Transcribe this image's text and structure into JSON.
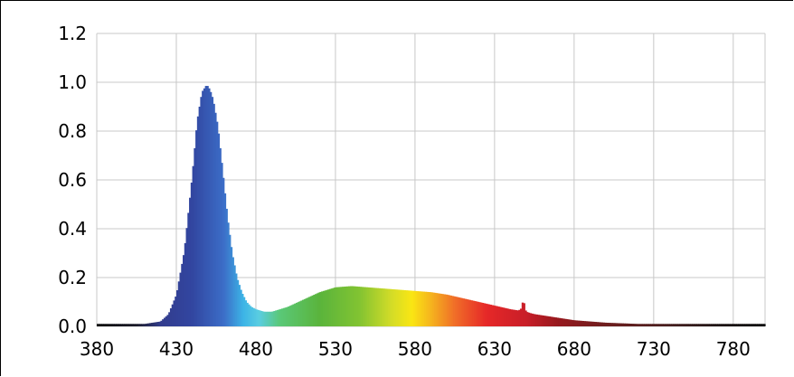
{
  "chart_data": {
    "type": "area",
    "title": "",
    "xlabel": "",
    "ylabel": "",
    "xlim": [
      380,
      800
    ],
    "ylim": [
      0.0,
      1.2
    ],
    "grid": true,
    "legend": "none",
    "x_ticks": [
      "380",
      "430",
      "480",
      "530",
      "580",
      "630",
      "680",
      "730",
      "780"
    ],
    "y_ticks": [
      "0.0",
      "0.2",
      "0.4",
      "0.6",
      "0.8",
      "1.0",
      "1.2"
    ],
    "series": [
      {
        "x": [
          380,
          400,
          410,
          420,
          425,
          430,
          435,
          440,
          443,
          446,
          449,
          451,
          453,
          456,
          459,
          462,
          465,
          468,
          471,
          474,
          477,
          480,
          485,
          490,
          495,
          500,
          510,
          520,
          530,
          540,
          550,
          560,
          570,
          580,
          590,
          600,
          610,
          620,
          630,
          640,
          645,
          647,
          648,
          649,
          650,
          652,
          655,
          660,
          670,
          680,
          690,
          700,
          720,
          740,
          760,
          780,
          800
        ],
        "y": [
          0.01,
          0.01,
          0.01,
          0.02,
          0.05,
          0.13,
          0.31,
          0.62,
          0.84,
          0.96,
          0.99,
          0.97,
          0.93,
          0.82,
          0.64,
          0.45,
          0.3,
          0.2,
          0.14,
          0.1,
          0.08,
          0.07,
          0.06,
          0.06,
          0.07,
          0.08,
          0.11,
          0.14,
          0.16,
          0.165,
          0.16,
          0.155,
          0.15,
          0.145,
          0.14,
          0.13,
          0.115,
          0.1,
          0.085,
          0.07,
          0.065,
          0.075,
          0.12,
          0.07,
          0.06,
          0.055,
          0.05,
          0.045,
          0.035,
          0.025,
          0.02,
          0.015,
          0.01,
          0.01,
          0.01,
          0.01,
          0.01
        ]
      }
    ]
  }
}
